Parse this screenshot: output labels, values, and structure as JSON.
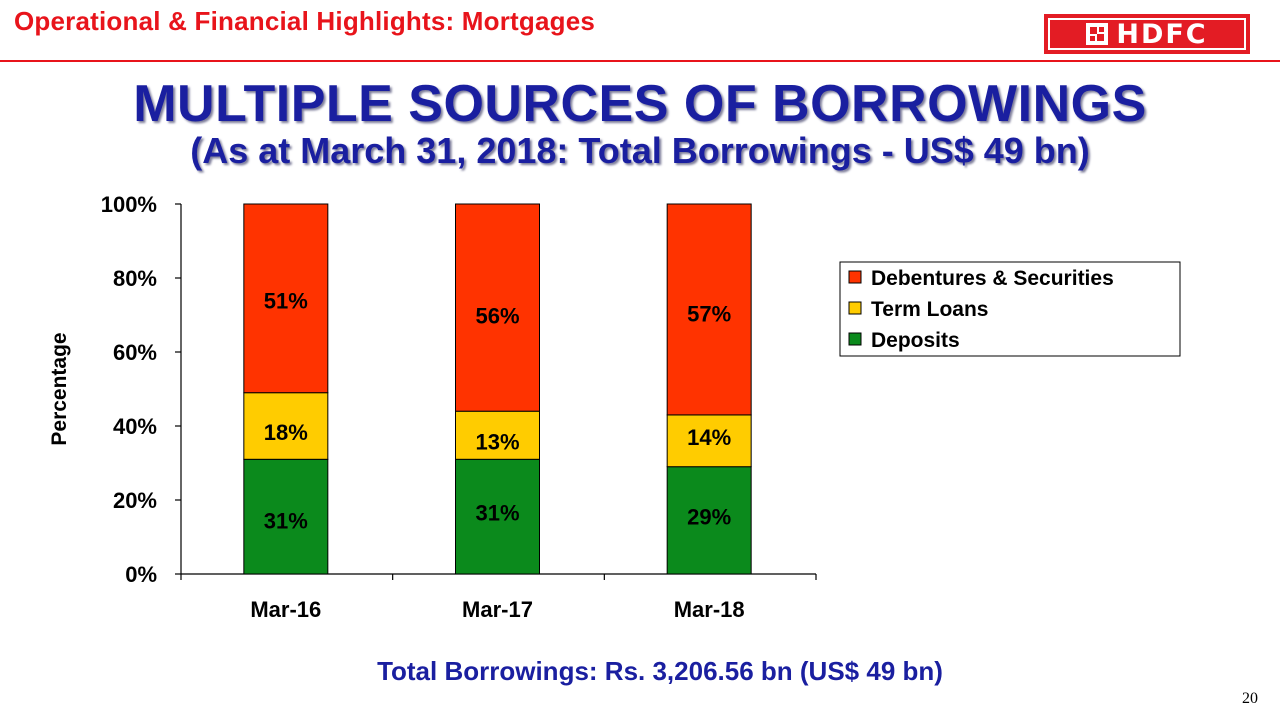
{
  "header": {
    "title": "Operational & Financial Highlights: Mortgages",
    "logo_text": "HDFC"
  },
  "slide": {
    "title": "MULTIPLE SOURCES OF BORROWINGS",
    "subtitle": "(As at March 31, 2018: Total Borrowings - US$ 49 bn)",
    "footer": "Total Borrowings: Rs. 3,206.56 bn (US$ 49 bn)",
    "page_number": "20"
  },
  "colors": {
    "brand_red": "#e31c24",
    "title_blue": "#1a1fa0",
    "deposits": "#0b8a1c",
    "term_loans": "#ffcc00",
    "debentures": "#ff3300"
  },
  "chart_data": {
    "type": "bar",
    "stacked": true,
    "categories": [
      "Mar-16",
      "Mar-17",
      "Mar-18"
    ],
    "series": [
      {
        "name": "Deposits",
        "values": [
          31,
          31,
          29
        ],
        "labels": [
          "31%",
          "31%",
          "29%"
        ],
        "color": "#0b8a1c"
      },
      {
        "name": "Term Loans",
        "values": [
          18,
          13,
          14
        ],
        "labels": [
          "18%",
          "13%",
          "14%"
        ],
        "color": "#ffcc00"
      },
      {
        "name": "Debentures & Securities",
        "values": [
          51,
          56,
          57
        ],
        "labels": [
          "51%",
          "56%",
          "57%"
        ],
        "color": "#ff3300"
      }
    ],
    "ylabel": "Percentage",
    "ylim": [
      0,
      100
    ],
    "yticks": [
      "0%",
      "20%",
      "40%",
      "60%",
      "80%",
      "100%"
    ],
    "legend": [
      "Debentures & Securities",
      "Term Loans",
      "Deposits"
    ],
    "legend_position": "right",
    "grid": false
  }
}
